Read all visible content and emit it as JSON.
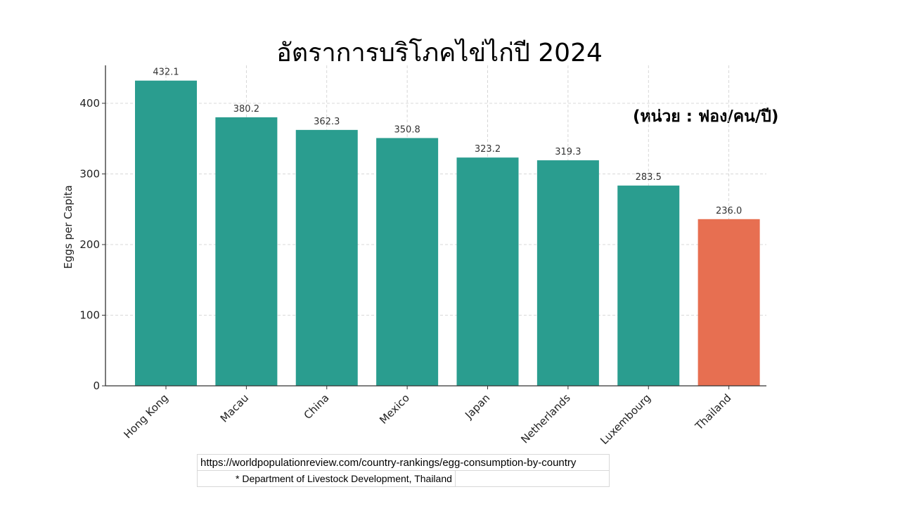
{
  "title": "อัตราการบริโภคไข่ไก่ปี 2024",
  "unit_note": "(หน่วย : ฟอง/คน/ปี)",
  "chart_data": {
    "type": "bar",
    "categories": [
      "Hong Kong",
      "Macau",
      "China",
      "Mexico",
      "Japan",
      "Netherlands",
      "Luxembourg",
      "Thailand"
    ],
    "values": [
      432.1,
      380.2,
      362.3,
      350.8,
      323.2,
      319.3,
      283.5,
      236.0
    ],
    "value_labels": [
      "432.1",
      "380.2",
      "362.3",
      "350.8",
      "323.2",
      "319.3",
      "283.5",
      "236.0"
    ],
    "colors": [
      "#2a9d8f",
      "#2a9d8f",
      "#2a9d8f",
      "#2a9d8f",
      "#2a9d8f",
      "#2a9d8f",
      "#2a9d8f",
      "#e76f51"
    ],
    "xlabel": "",
    "ylabel": "Eggs per Capita",
    "ylim": [
      0,
      453.7
    ],
    "yticks": [
      0,
      100,
      200,
      300,
      400
    ],
    "grid": true,
    "legend": "none"
  },
  "sources": {
    "url": "https://worldpopulationreview.com/country-rankings/egg-consumption-by-country",
    "note": "*  Department of Livestock Development, Thailand"
  }
}
